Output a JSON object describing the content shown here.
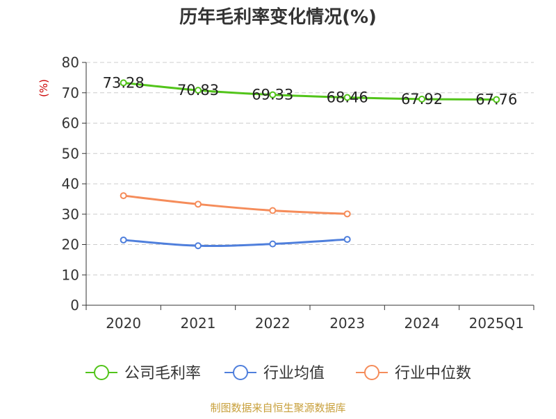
{
  "chart_data": {
    "type": "line",
    "title": "历年毛利率变化情况(%)",
    "ylabel": "(%)",
    "xlabel": "",
    "categories": [
      "2020",
      "2021",
      "2022",
      "2023",
      "2024",
      "2025Q1"
    ],
    "ylim": [
      0,
      80
    ],
    "yticks": [
      0,
      10,
      20,
      30,
      40,
      50,
      60,
      70,
      80
    ],
    "grid": true,
    "legend_position": "bottom",
    "series": [
      {
        "name": "公司毛利率",
        "color": "#52c41a",
        "values": [
          73.28,
          70.83,
          69.33,
          68.46,
          67.92,
          67.76
        ],
        "data_labels": [
          "73.28",
          "70.83",
          "69.33",
          "68.46",
          "67.92",
          "67.76"
        ]
      },
      {
        "name": "行业均值",
        "color": "#4f7fdc",
        "values": [
          21.5,
          19.6,
          20.2,
          21.7,
          null,
          null
        ]
      },
      {
        "name": "行业中位数",
        "color": "#f58c5a",
        "values": [
          36.1,
          33.3,
          31.2,
          30.1,
          null,
          null
        ]
      }
    ]
  },
  "footer": {
    "source": "制图数据来自恒生聚源数据库",
    "color": "#c8a03c"
  },
  "colors": {
    "title": "#333333",
    "ylabel": "#cc0000",
    "axis": "#333333",
    "grid": "#cccccc"
  }
}
